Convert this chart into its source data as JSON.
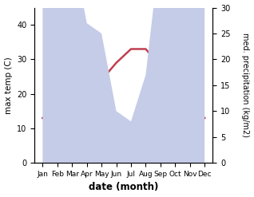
{
  "months": [
    "Jan",
    "Feb",
    "Mar",
    "Apr",
    "May",
    "Jun",
    "Jul",
    "Aug",
    "Sep",
    "Oct",
    "Nov",
    "Dec"
  ],
  "temp_max": [
    13,
    14,
    17,
    20,
    24,
    29,
    33,
    33,
    28,
    22,
    17,
    13
  ],
  "precipitation": [
    45,
    43,
    42,
    27,
    25,
    10,
    8,
    17,
    42,
    65,
    60,
    50
  ],
  "temp_color": "#c04050",
  "precip_fill_color": "#c5cce8",
  "temp_ylim": [
    0,
    45
  ],
  "precip_ylim": [
    0,
    30
  ],
  "temp_yticks": [
    0,
    10,
    20,
    30,
    40
  ],
  "precip_yticks": [
    0,
    5,
    10,
    15,
    20,
    25,
    30
  ],
  "xlabel": "date (month)",
  "ylabel_left": "max temp (C)",
  "ylabel_right": "med. precipitation (kg/m2)",
  "figsize": [
    3.18,
    2.47
  ],
  "dpi": 100
}
